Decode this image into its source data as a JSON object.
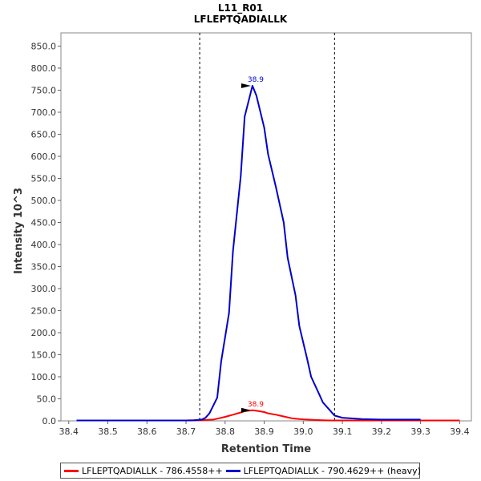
{
  "chart_data": {
    "type": "line",
    "title": "L11_R01",
    "subtitle": "LFLEPTQADIALLK",
    "xlabel": "Retention Time",
    "ylabel": "Intensity 10^3",
    "xlim": [
      38.38,
      39.43
    ],
    "ylim": [
      0,
      880
    ],
    "xticks": [
      "38.4",
      "38.5",
      "38.6",
      "38.7",
      "38.8",
      "38.9",
      "39.0",
      "39.1",
      "39.2",
      "39.3",
      "39.4"
    ],
    "yticks": [
      "0.0",
      "50.0",
      "100.0",
      "150.0",
      "200.0",
      "250.0",
      "300.0",
      "350.0",
      "400.0",
      "450.0",
      "500.0",
      "550.0",
      "600.0",
      "650.0",
      "700.0",
      "750.0",
      "800.0",
      "850.0"
    ],
    "boundaries": [
      38.735,
      39.08
    ],
    "legend_position": "bottom",
    "grid": false,
    "series": [
      {
        "name": "LFLEPTQADIALLK - 786.4558++",
        "color": "#ff0000",
        "x": [
          38.42,
          38.5,
          38.6,
          38.7,
          38.73,
          38.75,
          38.77,
          38.78,
          38.8,
          38.82,
          38.84,
          38.85,
          38.87,
          38.88,
          38.9,
          38.91,
          38.93,
          38.95,
          38.97,
          38.99,
          39.01,
          39.03,
          39.05,
          39.07,
          39.1,
          39.2,
          39.3,
          39.4
        ],
        "y": [
          1,
          1,
          1,
          1,
          1.5,
          2,
          3,
          5,
          9,
          14,
          19,
          22,
          24,
          23,
          20,
          17,
          14,
          10,
          6,
          4,
          3,
          2,
          1.5,
          1,
          1,
          1,
          1,
          1
        ],
        "peak_label": "38.9",
        "peak_x": 38.87,
        "peak_y": 24
      },
      {
        "name": "LFLEPTQADIALLK - 790.4629++ (heavy)",
        "color": "#0000cc",
        "x": [
          38.42,
          38.5,
          38.6,
          38.7,
          38.72,
          38.74,
          38.75,
          38.76,
          38.78,
          38.79,
          38.81,
          38.82,
          38.84,
          38.85,
          38.87,
          38.88,
          38.9,
          38.91,
          38.93,
          38.95,
          38.96,
          38.98,
          38.99,
          39.01,
          39.02,
          39.04,
          39.05,
          39.07,
          39.08,
          39.1,
          39.15,
          39.2,
          39.3
        ],
        "y": [
          1,
          1,
          1,
          1,
          1.5,
          3,
          7,
          17,
          53,
          135,
          245,
          385,
          555,
          690,
          760,
          738,
          665,
          605,
          530,
          450,
          370,
          285,
          215,
          140,
          100,
          62,
          42,
          22,
          12,
          7,
          4,
          3,
          3
        ],
        "peak_label": "38.9",
        "peak_x": 38.87,
        "peak_y": 760
      }
    ]
  }
}
